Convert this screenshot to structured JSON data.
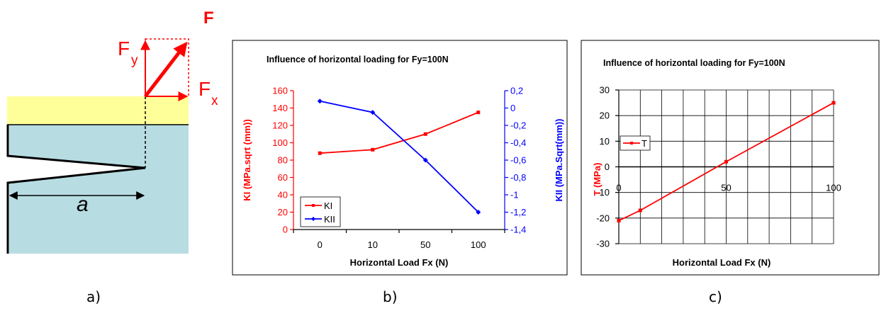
{
  "diagram": {
    "force_label": "F",
    "fy_label": "F",
    "fy_sub": "y",
    "fx_label": "F",
    "fx_sub": "x",
    "crack_label": "a",
    "colors": {
      "coating": "#ffff99",
      "substrate": "#b7dde3",
      "force": "#ff0000"
    }
  },
  "panel_labels": [
    "a)",
    "b)",
    "c)"
  ],
  "chart_data": [
    {
      "type": "line",
      "title": "Influence of horizontal loading for Fy=100N",
      "xlabel": "Horizontal Load Fx (N)",
      "categories": [
        "0",
        "10",
        "50",
        "100"
      ],
      "ylabel_left": "KI (MPa.sqrt (mm))",
      "ylabel_right": "KII (MPa.Sqrt(mm))",
      "ylim_left": [
        0,
        160
      ],
      "yticks_left": [
        0,
        20,
        40,
        60,
        80,
        100,
        120,
        140,
        160
      ],
      "ylim_right": [
        -1.4,
        0.2
      ],
      "yticks_right": [
        "0,2",
        "0",
        "-0,2",
        "-0,4",
        "-0,6",
        "-0,8",
        "-1",
        "-1,2",
        "-1,4"
      ],
      "yticks_right_values": [
        0.2,
        0,
        -0.2,
        -0.4,
        -0.6,
        -0.8,
        -1,
        -1.2,
        -1.4
      ],
      "grid": false,
      "legend_position": "bottom-left",
      "series": [
        {
          "name": "KI",
          "axis": "left",
          "color": "#ff0000",
          "values": [
            88,
            92,
            110,
            135
          ]
        },
        {
          "name": "KII",
          "axis": "right",
          "color": "#0000ff",
          "values": [
            0.08,
            -0.05,
            -0.6,
            -1.2
          ]
        }
      ]
    },
    {
      "type": "scatter",
      "title": "Influence of horizontal loading for Fy=100N",
      "xlabel": "Horizontal Load Fx (N)",
      "ylabel": "T (MPa)",
      "xlim": [
        0,
        100
      ],
      "xticks": [
        0,
        50,
        100
      ],
      "ylim": [
        -30,
        30
      ],
      "yticks": [
        -30,
        -20,
        -10,
        0,
        10,
        20,
        30
      ],
      "grid": true,
      "legend_position": "left",
      "series": [
        {
          "name": "T",
          "color": "#ff0000",
          "x": [
            0,
            10,
            50,
            100
          ],
          "y": [
            -21,
            -17,
            2,
            25
          ]
        }
      ]
    }
  ]
}
